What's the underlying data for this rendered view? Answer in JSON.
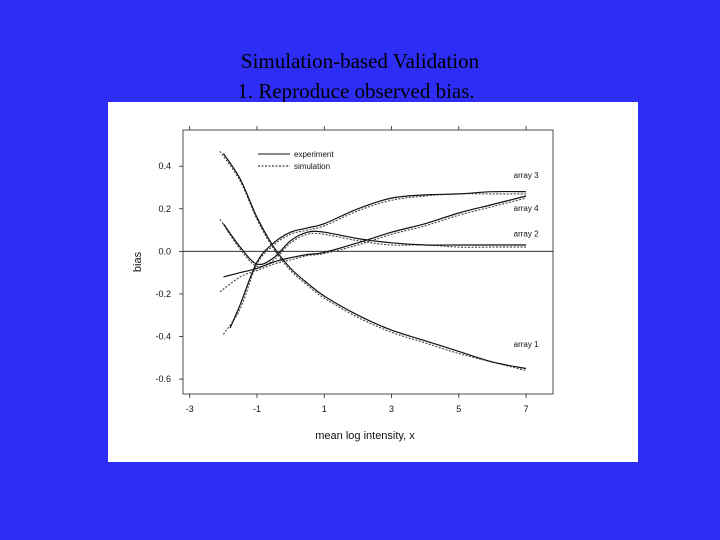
{
  "slide": {
    "title_line1": "Simulation-based Validation",
    "title_line2": "1. Reproduce observed bias."
  },
  "chart_data": {
    "type": "line",
    "title": "",
    "xlabel": "mean log intensity, x",
    "ylabel": "bias",
    "xlim": [
      -3.2,
      7.8
    ],
    "ylim": [
      -0.67,
      0.57
    ],
    "xticks": [
      -3,
      -1,
      1,
      3,
      5,
      7
    ],
    "xtick_labels": [
      "-3",
      "-1",
      "1",
      "3",
      "5",
      "7"
    ],
    "yticks": [
      0.4,
      0.2,
      0.0,
      -0.2,
      -0.4,
      -0.6
    ],
    "ytick_labels": [
      "0.4",
      "0.2",
      "0.0",
      "-0.2",
      "-0.4",
      "-0.6"
    ],
    "reference_line_y": 0.0,
    "grid": false,
    "legend": {
      "position": "top-left",
      "entries": [
        {
          "label": "experiment",
          "style": "solid"
        },
        {
          "label": "simulation",
          "style": "dotted"
        }
      ]
    },
    "curve_labels": [
      {
        "text": "array 3",
        "x": 7.0,
        "y": 0.345
      },
      {
        "text": "array 4",
        "x": 7.0,
        "y": 0.19
      },
      {
        "text": "array 2",
        "x": 7.0,
        "y": 0.07
      },
      {
        "text": "array 1",
        "x": 7.0,
        "y": -0.45
      }
    ],
    "series": [
      {
        "name": "array 1",
        "experiment": {
          "x": [
            -2.0,
            -1.5,
            -1.0,
            -0.5,
            0.0,
            0.5,
            1.0,
            2.0,
            3.0,
            4.0,
            5.0,
            6.0,
            7.0
          ],
          "y": [
            0.46,
            0.34,
            0.16,
            0.02,
            -0.08,
            -0.15,
            -0.21,
            -0.3,
            -0.37,
            -0.42,
            -0.47,
            -0.52,
            -0.55
          ]
        },
        "simulation": {
          "x": [
            -2.1,
            -1.5,
            -1.0,
            -0.5,
            0.0,
            0.5,
            1.0,
            2.0,
            3.0,
            4.0,
            5.0,
            6.0,
            7.0
          ],
          "y": [
            0.47,
            0.33,
            0.15,
            0.01,
            -0.09,
            -0.16,
            -0.22,
            -0.31,
            -0.38,
            -0.43,
            -0.48,
            -0.52,
            -0.56
          ]
        }
      },
      {
        "name": "array 2",
        "experiment": {
          "x": [
            -2.0,
            -1.5,
            -1.0,
            -0.5,
            0.0,
            0.5,
            1.0,
            2.0,
            3.0,
            4.0,
            5.0,
            6.0,
            7.0
          ],
          "y": [
            0.13,
            0.02,
            -0.06,
            -0.03,
            0.05,
            0.09,
            0.09,
            0.06,
            0.04,
            0.03,
            0.03,
            0.03,
            0.03
          ]
        },
        "simulation": {
          "x": [
            -2.1,
            -1.5,
            -1.0,
            -0.5,
            0.0,
            0.5,
            1.0,
            2.0,
            3.0,
            4.0,
            5.0,
            6.0,
            7.0
          ],
          "y": [
            0.15,
            0.01,
            -0.07,
            -0.04,
            0.04,
            0.08,
            0.08,
            0.05,
            0.03,
            0.03,
            0.02,
            0.02,
            0.02
          ]
        }
      },
      {
        "name": "array 3",
        "experiment": {
          "x": [
            -1.8,
            -1.5,
            -1.0,
            -0.5,
            0.0,
            0.5,
            1.0,
            2.0,
            3.0,
            4.0,
            5.0,
            6.0,
            7.0
          ],
          "y": [
            -0.36,
            -0.25,
            -0.05,
            0.04,
            0.09,
            0.11,
            0.13,
            0.2,
            0.25,
            0.265,
            0.27,
            0.28,
            0.28
          ]
        },
        "simulation": {
          "x": [
            -2.0,
            -1.5,
            -1.0,
            -0.5,
            0.0,
            0.5,
            1.0,
            2.0,
            3.0,
            4.0,
            5.0,
            6.0,
            7.0
          ],
          "y": [
            -0.39,
            -0.27,
            -0.06,
            0.03,
            0.08,
            0.1,
            0.12,
            0.19,
            0.24,
            0.26,
            0.27,
            0.27,
            0.27
          ]
        }
      },
      {
        "name": "array 4",
        "experiment": {
          "x": [
            -2.0,
            -1.5,
            -1.0,
            -0.5,
            0.0,
            0.5,
            1.0,
            2.0,
            3.0,
            4.0,
            5.0,
            6.0,
            7.0
          ],
          "y": [
            -0.12,
            -0.1,
            -0.08,
            -0.05,
            -0.03,
            -0.015,
            -0.005,
            0.04,
            0.09,
            0.13,
            0.18,
            0.22,
            0.26
          ]
        },
        "simulation": {
          "x": [
            -2.1,
            -1.5,
            -1.0,
            -0.5,
            0.0,
            0.5,
            1.0,
            2.0,
            3.0,
            4.0,
            5.0,
            6.0,
            7.0
          ],
          "y": [
            -0.19,
            -0.12,
            -0.09,
            -0.06,
            -0.04,
            -0.02,
            -0.01,
            0.03,
            0.08,
            0.12,
            0.17,
            0.21,
            0.25
          ]
        }
      }
    ]
  }
}
